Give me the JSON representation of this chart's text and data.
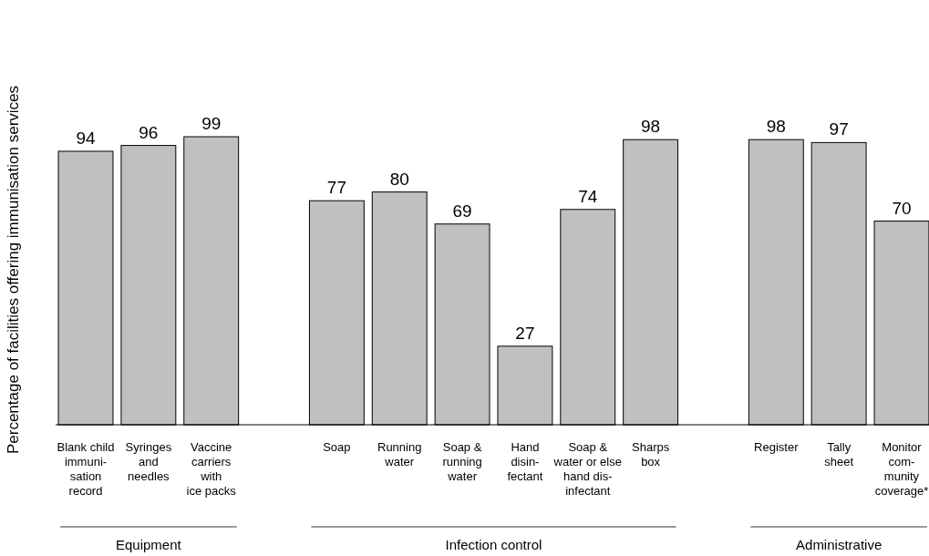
{
  "chart_data": {
    "type": "bar",
    "ylabel": "Percentage of facilities offering immunisation services",
    "categories": [
      "Blank child\nimmuni-\nsation\nrecord",
      "Syringes\nand\nneedles",
      "Vaccine\ncarriers\nwith\nice packs",
      null,
      "Soap",
      "Running\nwater",
      "Soap &\nrunning\nwater",
      "Hand\ndisin-\nfectant",
      "Soap &\nwater or else\nhand dis-\ninfectant",
      "Sharps\nbox",
      null,
      "Register",
      "Tally\nsheet",
      "Monitor\ncom-\nmunity\ncoverage*"
    ],
    "values": [
      94,
      96,
      99,
      null,
      77,
      80,
      69,
      27,
      74,
      98,
      null,
      98,
      97,
      70
    ],
    "color": "#c0c0c0",
    "data_labels": true,
    "annotations": [
      "Equipment",
      "Infection control",
      "Administrative"
    ]
  }
}
